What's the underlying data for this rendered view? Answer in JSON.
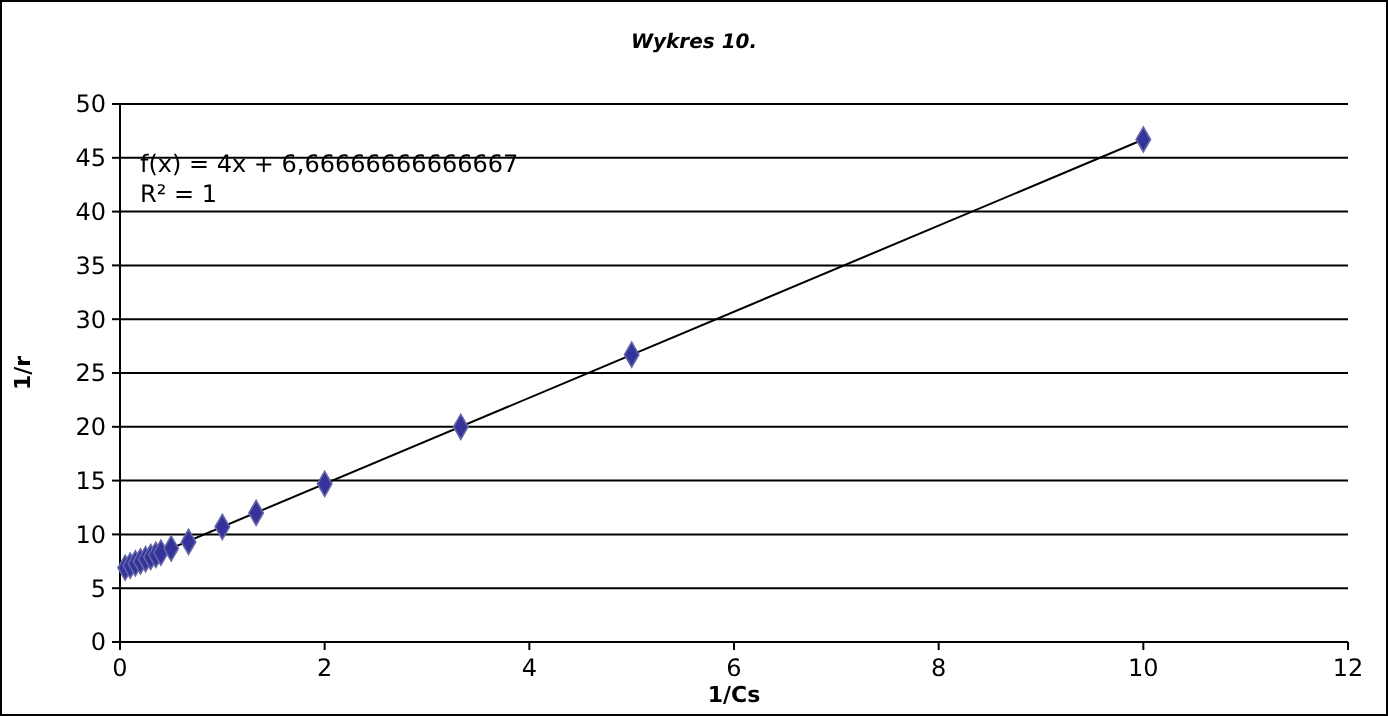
{
  "chart_data": {
    "type": "scatter",
    "title": "Wykres 10.",
    "xlabel": "1/Cs",
    "ylabel": "1/r",
    "xlim": [
      0,
      12
    ],
    "xticks": [
      0,
      2,
      4,
      6,
      8,
      10,
      12
    ],
    "ylim": [
      0,
      50
    ],
    "yticks": [
      0,
      5,
      10,
      15,
      20,
      25,
      30,
      35,
      40,
      45,
      50
    ],
    "grid": "y",
    "annotations": [
      "f(x) = 4x + 6,66666666666667",
      "R² = 1"
    ],
    "series": [
      {
        "marker": "diamond",
        "color": "#333399",
        "x": [
          0.05,
          0.1,
          0.15,
          0.2,
          0.25,
          0.3,
          0.35,
          0.4,
          0.5,
          0.67,
          1,
          1.33,
          2,
          3.33,
          5,
          10
        ],
        "values": [
          6.9,
          7.1,
          7.3,
          7.5,
          7.7,
          7.9,
          8.1,
          8.3,
          8.7,
          9.3,
          10.7,
          12,
          14.7,
          20,
          26.7,
          46.7
        ]
      },
      {
        "type": "line",
        "marker": "none",
        "color": "#000000",
        "x": [
          0,
          10
        ],
        "values": [
          6.7,
          46.7
        ]
      }
    ]
  }
}
